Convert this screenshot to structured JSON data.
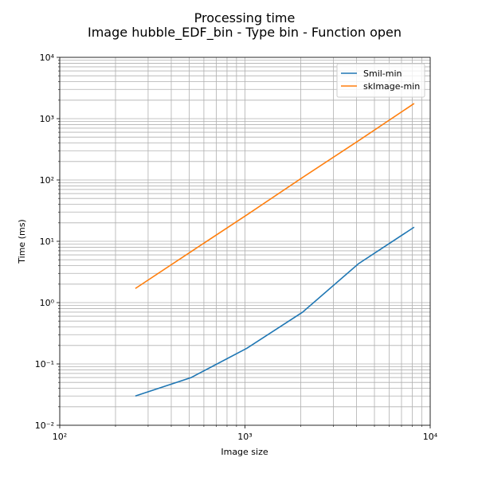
{
  "chart_data": {
    "type": "line",
    "title": "Processing time",
    "subtitle": "Image hubble_EDF_bin - Type bin - Function open",
    "x_label": "Image size",
    "y_label": "Time (ms)",
    "x": [
      256,
      512,
      1024,
      2048,
      4096,
      8192
    ],
    "series": [
      {
        "name": "Smil-min",
        "color": "#1f77b4",
        "values": [
          0.03,
          0.06,
          0.18,
          0.7,
          4.3,
          17
        ]
      },
      {
        "name": "skImage-min",
        "color": "#ff7f0e",
        "values": [
          1.7,
          6.8,
          27,
          110,
          435,
          1770
        ]
      }
    ],
    "xlim": [
      100,
      10000
    ],
    "ylim": [
      0.01,
      10000
    ],
    "xticks": [
      {
        "value": 100,
        "label": "10²"
      },
      {
        "value": 1000,
        "label": "10³"
      },
      {
        "value": 10000,
        "label": "10⁴"
      }
    ],
    "yticks": [
      {
        "value": 0.01,
        "label": "10⁻²"
      },
      {
        "value": 0.1,
        "label": "10⁻¹"
      },
      {
        "value": 1,
        "label": "10⁰"
      },
      {
        "value": 10,
        "label": "10¹"
      },
      {
        "value": 100,
        "label": "10²"
      },
      {
        "value": 1000,
        "label": "10³"
      },
      {
        "value": 10000,
        "label": "10⁴"
      }
    ],
    "x_log": true,
    "y_log": true,
    "grid": "both",
    "legend": "upper right"
  }
}
